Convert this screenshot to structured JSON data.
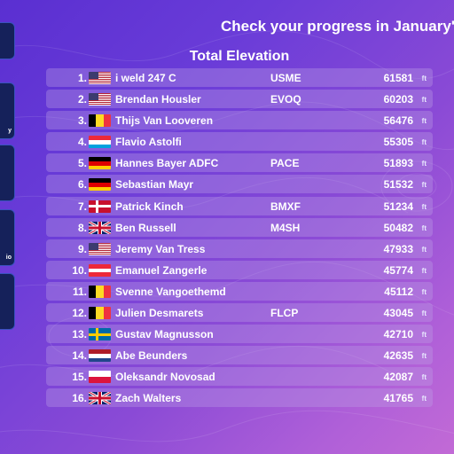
{
  "header": {
    "headline": "Check your progress in January'",
    "subtitle": "Total Elevation"
  },
  "sidebar": {
    "items": [
      {
        "label": ""
      },
      {
        "label": "y"
      },
      {
        "label": ""
      },
      {
        "label": "io"
      },
      {
        "label": ""
      }
    ]
  },
  "leaderboard": {
    "unit": "ft",
    "rows": [
      {
        "rank": "1.",
        "flag": "us-flag-icon",
        "name": "i weld 247 C",
        "club": "USME",
        "value": "61581"
      },
      {
        "rank": "2.",
        "flag": "us-flag-icon",
        "name": "Brendan Housler",
        "club": "EVOQ",
        "value": "60203"
      },
      {
        "rank": "3.",
        "flag": "be-flag-icon",
        "name": "Thijs Van Looveren",
        "club": "",
        "value": "56476"
      },
      {
        "rank": "4.",
        "flag": "lu-flag-icon",
        "name": "Flavio Astolfi",
        "club": "",
        "value": "55305"
      },
      {
        "rank": "5.",
        "flag": "de-flag-icon",
        "name": "Hannes Bayer ADFC",
        "club": "PACE",
        "value": "51893"
      },
      {
        "rank": "6.",
        "flag": "de-flag-icon",
        "name": "Sebastian Mayr",
        "club": "",
        "value": "51532"
      },
      {
        "rank": "7.",
        "flag": "dk-flag-icon",
        "name": "Patrick Kinch",
        "club": "BMXF",
        "value": "51234"
      },
      {
        "rank": "8.",
        "flag": "gb-flag-icon",
        "name": "Ben Russell",
        "club": "M4SH",
        "value": "50482"
      },
      {
        "rank": "9.",
        "flag": "us-flag-icon",
        "name": "Jeremy Van Tress",
        "club": "",
        "value": "47933"
      },
      {
        "rank": "10.",
        "flag": "at-flag-icon",
        "name": "Emanuel Zangerle",
        "club": "",
        "value": "45774"
      },
      {
        "rank": "11.",
        "flag": "be-flag-icon",
        "name": "Svenne Vangoethemd",
        "club": "",
        "value": "45112"
      },
      {
        "rank": "12.",
        "flag": "be-flag-icon",
        "name": "Julien Desmarets",
        "club": "FLCP",
        "value": "43045"
      },
      {
        "rank": "13.",
        "flag": "se-flag-icon",
        "name": "Gustav Magnusson",
        "club": "",
        "value": "42710"
      },
      {
        "rank": "14.",
        "flag": "nl-flag-icon",
        "name": "Abe Beunders",
        "club": "",
        "value": "42635"
      },
      {
        "rank": "15.",
        "flag": "pl-flag-icon",
        "name": "Oleksandr Novosad",
        "club": "",
        "value": "42087"
      },
      {
        "rank": "16.",
        "flag": "gb-flag-icon",
        "name": "Zach Walters",
        "club": "",
        "value": "41765"
      }
    ]
  },
  "colors": {
    "row_bg": "#b89ee6",
    "sidebar_bg": "#15215a",
    "sidebar_border": "#3a52c0"
  }
}
